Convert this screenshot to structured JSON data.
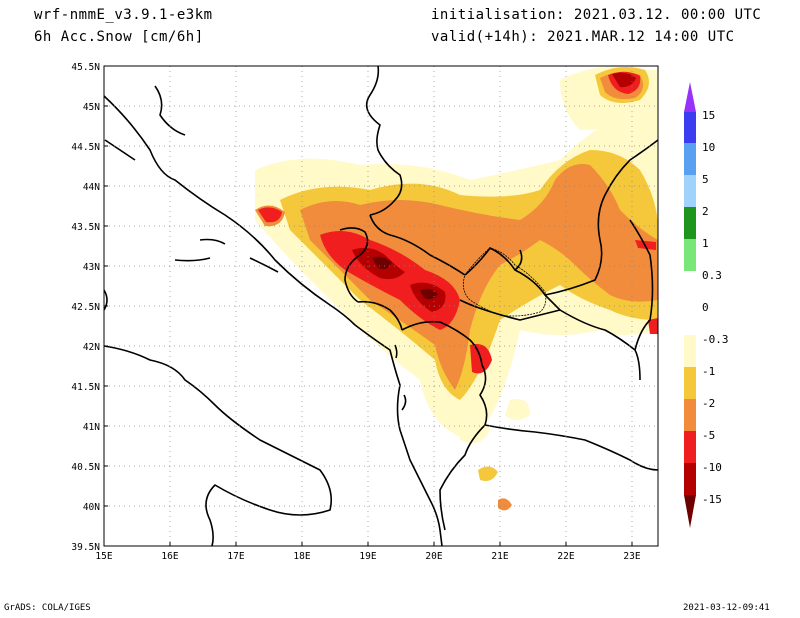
{
  "header": {
    "model": "wrf-nmmE_v3.9.1-e3km",
    "field": "6h Acc.Snow [cm/6h]",
    "init": "initialisation: 2021.03.12. 00:00 UTC",
    "valid": "valid(+14h): 2021.MAR.12 14:00 UTC"
  },
  "axes": {
    "lat_labels": [
      "45.5N",
      "45N",
      "44.5N",
      "44N",
      "43.5N",
      "43N",
      "42.5N",
      "42N",
      "41.5N",
      "41N",
      "40.5N",
      "40N",
      "39.5N"
    ],
    "lon_labels": [
      "15E",
      "16E",
      "17E",
      "18E",
      "19E",
      "20E",
      "21E",
      "22E",
      "23E"
    ]
  },
  "colorbar": {
    "labels": [
      "15",
      "10",
      "5",
      "2",
      "1",
      "0.3",
      "0",
      "-0.3",
      "-1",
      "-2",
      "-5",
      "-10",
      "-15"
    ],
    "colors": [
      "#3c3cf0",
      "#5aa0f0",
      "#a0d2fa",
      "#1e961e",
      "#78e678",
      "#ffffff",
      "#ffffff",
      "#fffac8",
      "#f5c83c",
      "#f08c3c",
      "#f01e1e",
      "#b40000",
      "#6e0000"
    ],
    "top_arrow_color": "#9632fa",
    "bottom_arrow_color": "#6e0000"
  },
  "footer": {
    "left": "GrADS: COLA/IGES",
    "right": "2021-03-12-09:41"
  }
}
